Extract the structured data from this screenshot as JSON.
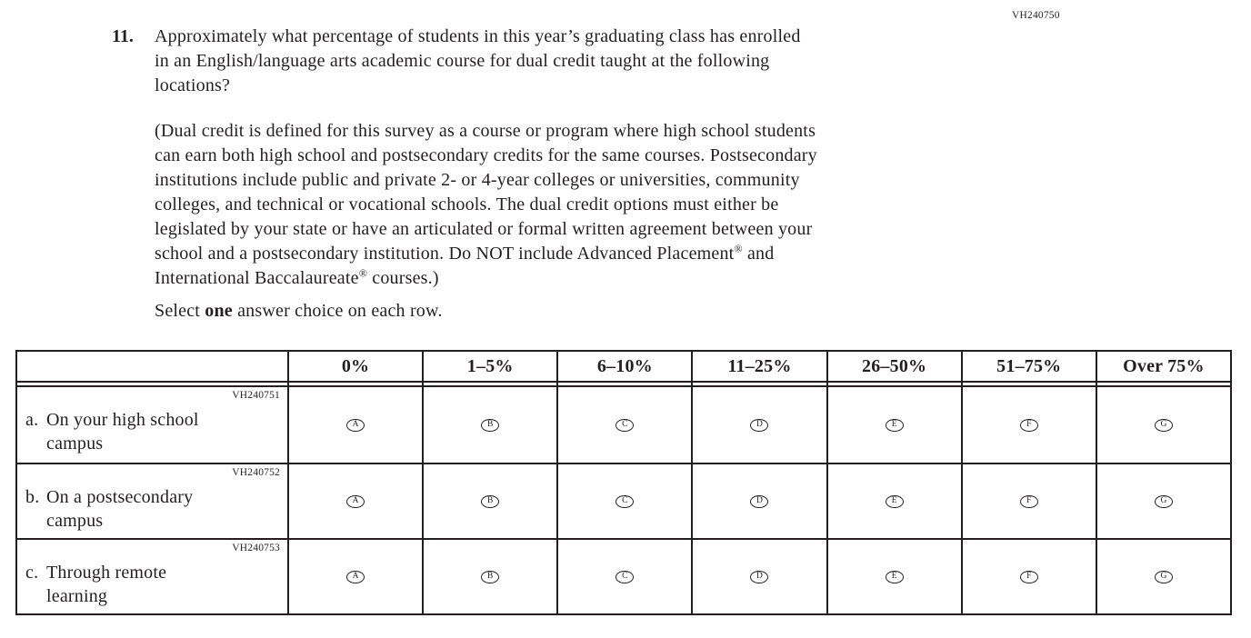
{
  "page": {
    "form_code": "VH240750"
  },
  "question": {
    "number": "11.",
    "prompt_lines": [
      "Approximately what percentage of students in this year’s graduating class has enrolled",
      "in an English/language arts academic course for dual credit taught at the following",
      "locations?"
    ],
    "definition_lines": [
      "(Dual credit is defined for this survey as a course or program where high school students",
      "can earn both high school and postsecondary credits for the same courses. Postsecondary",
      "institutions include public and private 2- or 4-year colleges or universities, community",
      "colleges, and technical or vocational schools. The dual credit options must either be",
      "legislated by your state or have an articulated or formal written agreement between your",
      "school and a postsecondary institution. Do NOT include Advanced Placement® and",
      "International Baccalaureate® courses.)"
    ],
    "instruction": {
      "prefix": "Select ",
      "bold": "one",
      "suffix": " answer choice on each row."
    }
  },
  "table": {
    "column_headers": [
      "0%",
      "1–5%",
      "6–10%",
      "11–25%",
      "26–50%",
      "51–75%",
      "Over 75%"
    ],
    "option_letters": [
      "A",
      "B",
      "C",
      "D",
      "E",
      "F",
      "G"
    ],
    "rows": [
      {
        "code": "VH240751",
        "letter": "a.",
        "label": "On your high school campus"
      },
      {
        "code": "VH240752",
        "letter": "b.",
        "label": "On a postsecondary campus"
      },
      {
        "code": "VH240753",
        "letter": "c.",
        "label": "Through remote learning"
      }
    ]
  },
  "colors": {
    "text": "#231f20",
    "line": "#231f20",
    "background": "#ffffff"
  }
}
